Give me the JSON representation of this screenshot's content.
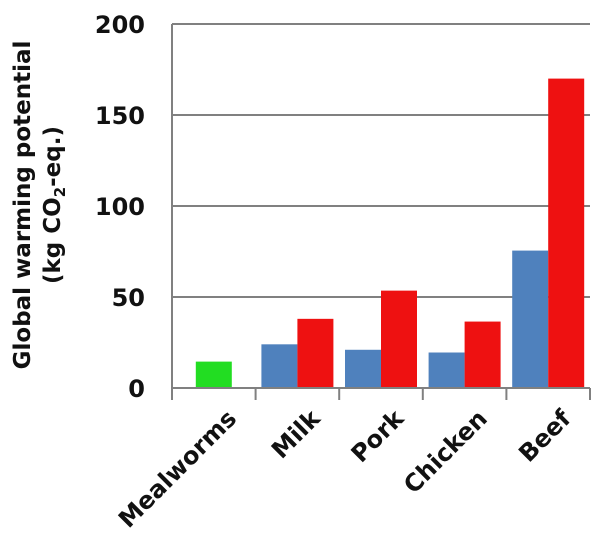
{
  "chart_data": {
    "type": "bar",
    "categories": [
      "Mealworms",
      "Milk",
      "Pork",
      "Chicken",
      "Beef"
    ],
    "series": [
      {
        "color": "#22dd22",
        "values": [
          14.5,
          null,
          null,
          null,
          null
        ]
      },
      {
        "color": "#4f81bd",
        "values": [
          null,
          24,
          21,
          19.5,
          75.5
        ]
      },
      {
        "color": "#ee1111",
        "values": [
          null,
          38,
          53.5,
          36.5,
          170
        ]
      }
    ],
    "title": "",
    "xlabel": "",
    "ylabel_line1": "Global warming potential",
    "ylabel_line2_prefix": "(kg CO",
    "ylabel_line2_sub": "2",
    "ylabel_line2_suffix": "-eq.)",
    "ylim": [
      0,
      200
    ],
    "yticks": [
      "0",
      "50",
      "100",
      "150",
      "200"
    ],
    "grid": true
  }
}
